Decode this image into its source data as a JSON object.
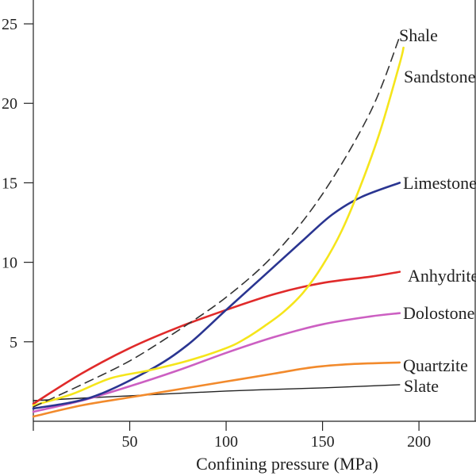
{
  "chart_data": {
    "type": "line",
    "title": "",
    "xlabel": "Confining pressure (MPa)",
    "ylabel": "",
    "xlim": [
      0,
      230
    ],
    "ylim": [
      0,
      26.5
    ],
    "x_ticks": [
      0,
      50,
      100,
      150,
      200
    ],
    "x_tick_labels": [
      "",
      "50",
      "100",
      "150",
      "200"
    ],
    "y_ticks": [
      5,
      10,
      15,
      20,
      25
    ],
    "y_tick_labels": [
      "5",
      "10",
      "15",
      "20",
      "25"
    ],
    "grid": false,
    "legend": "inline labels at line ends",
    "series": [
      {
        "name": "Shale",
        "color": "#333333",
        "dash": true,
        "x": [
          0,
          25,
          50,
          75,
          100,
          125,
          150,
          175,
          190
        ],
        "y": [
          0.9,
          2.3,
          3.8,
          5.7,
          7.8,
          10.5,
          14.3,
          19.5,
          24.2
        ]
      },
      {
        "name": "Sandstone",
        "color": "#f5e51b",
        "dash": false,
        "x": [
          0,
          20,
          40,
          60,
          80,
          100,
          110,
          120,
          130,
          140,
          150,
          160,
          170,
          180,
          190,
          192
        ],
        "y": [
          1.0,
          1.7,
          2.7,
          3.2,
          3.8,
          4.6,
          5.2,
          6.0,
          6.9,
          8.1,
          9.8,
          12.0,
          14.9,
          18.3,
          22.5,
          23.5
        ]
      },
      {
        "name": "Limestone",
        "color": "#2a3591",
        "dash": false,
        "x": [
          0,
          30,
          60,
          80,
          100,
          120,
          140,
          155,
          170,
          190
        ],
        "y": [
          0.8,
          1.5,
          3.2,
          4.8,
          7.0,
          9.2,
          11.4,
          13.0,
          14.1,
          15.0
        ]
      },
      {
        "name": "Anhydrite",
        "color": "#e02a2a",
        "dash": false,
        "x": [
          0,
          25,
          50,
          75,
          100,
          125,
          150,
          175,
          190
        ],
        "y": [
          1.1,
          3.0,
          4.6,
          5.9,
          7.0,
          8.0,
          8.7,
          9.1,
          9.4
        ]
      },
      {
        "name": "Dolostone",
        "color": "#cc5fc2",
        "dash": false,
        "x": [
          0,
          25,
          50,
          75,
          100,
          125,
          150,
          175,
          190
        ],
        "y": [
          0.6,
          1.3,
          2.2,
          3.2,
          4.3,
          5.3,
          6.1,
          6.6,
          6.8
        ]
      },
      {
        "name": "Quartzite",
        "color": "#f28a2c",
        "dash": false,
        "x": [
          0,
          25,
          50,
          75,
          100,
          125,
          145,
          165,
          190
        ],
        "y": [
          0.3,
          1.0,
          1.5,
          2.0,
          2.5,
          3.0,
          3.4,
          3.6,
          3.7
        ]
      },
      {
        "name": "Slate",
        "color": "#222222",
        "dash": false,
        "x": [
          0,
          50,
          100,
          150,
          190
        ],
        "y": [
          1.3,
          1.6,
          1.9,
          2.1,
          2.3
        ]
      }
    ]
  }
}
